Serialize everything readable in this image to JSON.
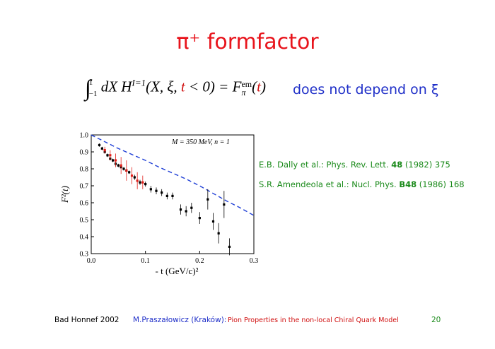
{
  "slide": {
    "title": "π⁺ formfactor",
    "formula": {
      "int": "∫",
      "upper": "1",
      "lower": "−1",
      "a": "dX H",
      "sup": "I=1",
      "b": "(X, ξ, ",
      "t1": "t",
      "c": " < 0) = F",
      "em": "em",
      "pi": "π",
      "d": "(",
      "t2": "t",
      "e": ")"
    },
    "note": "does not depend on ξ",
    "refs": [
      {
        "pre": "E.B. Dally et al.:  Phys. Rev. Lett. ",
        "vol": "48",
        "post": " (1982) 375"
      },
      {
        "pre": "S.R. Amendeola et al.: Nucl. Phys. ",
        "vol": "B48",
        "post": "  (1986) 168"
      }
    ],
    "footer": {
      "left": "Bad Honnef 2002",
      "author": "M.Praszałowicz (Kraków):",
      "talk": "Pion Properties in the non-local Chiral Quark Model",
      "page": "20"
    }
  },
  "chart_data": {
    "type": "scatter",
    "annotation": "M = 350 MeV, n = 1",
    "xlabel": "- t   (GeV/c)²",
    "ylabel": "F²(t)",
    "xlim": [
      0,
      0.3
    ],
    "ylim": [
      0.3,
      1.0
    ],
    "xticks": [
      {
        "value": 0,
        "label": "0.0"
      },
      0.1,
      0.2,
      0.3
    ],
    "yticks": [
      0.3,
      0.4,
      0.5,
      0.6,
      0.7,
      0.8,
      0.9,
      {
        "value": 1.0,
        "label": "1.0"
      }
    ],
    "series": [
      {
        "style": "dashed-line",
        "color": "#1f3fd6",
        "x": [
          0,
          0.025,
          0.05,
          0.075,
          0.1,
          0.125,
          0.15,
          0.175,
          0.2,
          0.225,
          0.25,
          0.275,
          0.3
        ],
        "values": [
          1.0,
          0.96,
          0.92,
          0.885,
          0.85,
          0.81,
          0.775,
          0.74,
          0.7,
          0.655,
          0.61,
          0.57,
          0.525
        ]
      },
      {
        "style": "points",
        "color": "#000000",
        "x": [
          0.015,
          0.02,
          0.025,
          0.03,
          0.035,
          0.04,
          0.045,
          0.05,
          0.055,
          0.06,
          0.065,
          0.07,
          0.08,
          0.09,
          0.1,
          0.11,
          0.12,
          0.13,
          0.14,
          0.15,
          0.165,
          0.175,
          0.185,
          0.2,
          0.215,
          0.225,
          0.235,
          0.245,
          0.255
        ],
        "values": [
          0.94,
          0.92,
          0.9,
          0.88,
          0.86,
          0.85,
          0.83,
          0.82,
          0.81,
          0.8,
          0.79,
          0.78,
          0.75,
          0.72,
          0.71,
          0.68,
          0.67,
          0.66,
          0.64,
          0.64,
          0.56,
          0.55,
          0.57,
          0.51,
          0.62,
          0.49,
          0.42,
          0.59,
          0.34
        ],
        "errors": [
          0.01,
          0.01,
          0.01,
          0.01,
          0.01,
          0.01,
          0.01,
          0.01,
          0.01,
          0.01,
          0.01,
          0.01,
          0.015,
          0.015,
          0.015,
          0.02,
          0.02,
          0.02,
          0.02,
          0.02,
          0.03,
          0.03,
          0.03,
          0.035,
          0.06,
          0.05,
          0.06,
          0.08,
          0.05
        ]
      },
      {
        "style": "points",
        "color": "#e0201a",
        "x": [
          0.025,
          0.035,
          0.045,
          0.055,
          0.065,
          0.075,
          0.085,
          0.095
        ],
        "values": [
          0.91,
          0.88,
          0.85,
          0.82,
          0.79,
          0.76,
          0.73,
          0.72
        ],
        "errors": [
          0.02,
          0.03,
          0.04,
          0.05,
          0.06,
          0.05,
          0.05,
          0.04
        ]
      }
    ]
  }
}
